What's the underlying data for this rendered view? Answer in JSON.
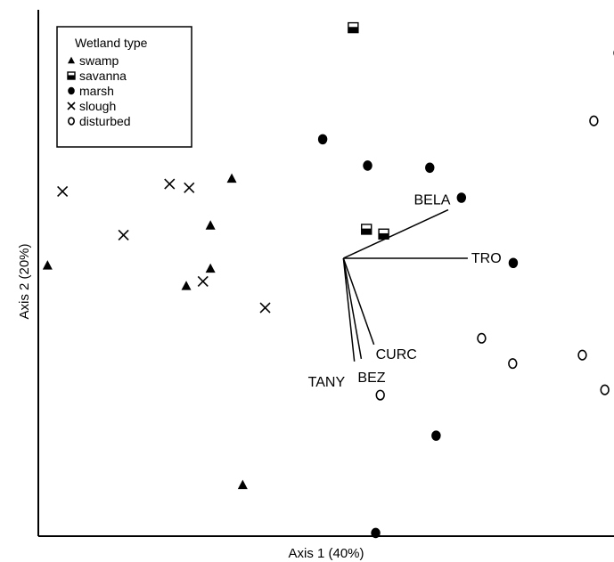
{
  "chart_data": {
    "type": "scatter",
    "xlabel": "Axis 1 (40%)",
    "ylabel": "Axis 2 (20%)",
    "xlim": [
      0,
      100
    ],
    "ylim": [
      0,
      100
    ],
    "grid": false,
    "legend": {
      "title": "Wetland type",
      "placement": "top-left",
      "entries": [
        "swamp",
        "savanna",
        "marsh",
        "slough",
        "disturbed"
      ]
    },
    "series": [
      {
        "name": "swamp",
        "marker": "triangle",
        "points": [
          [
            1.6,
            51.4
          ],
          [
            33.6,
            67.9
          ],
          [
            29.9,
            59.0
          ],
          [
            29.9,
            50.8
          ],
          [
            25.7,
            47.5
          ],
          [
            35.5,
            9.7
          ]
        ]
      },
      {
        "name": "savanna",
        "marker": "half-filled-square",
        "points": [
          [
            54.7,
            96.6
          ],
          [
            57.0,
            58.3
          ],
          [
            60.0,
            57.4
          ]
        ]
      },
      {
        "name": "marsh",
        "marker": "filled-circle",
        "points": [
          [
            49.4,
            75.4
          ],
          [
            57.2,
            70.4
          ],
          [
            68.0,
            70.0
          ],
          [
            73.5,
            64.3
          ],
          [
            82.5,
            51.9
          ],
          [
            69.1,
            19.1
          ],
          [
            58.6,
            0.6
          ]
        ]
      },
      {
        "name": "slough",
        "marker": "x",
        "points": [
          [
            4.2,
            65.5
          ],
          [
            14.8,
            57.2
          ],
          [
            22.8,
            66.9
          ],
          [
            26.2,
            66.2
          ],
          [
            28.6,
            48.4
          ],
          [
            39.4,
            43.4
          ]
        ]
      },
      {
        "name": "disturbed",
        "marker": "open-circle",
        "points": [
          [
            100.7,
            91.8
          ],
          [
            96.5,
            78.9
          ],
          [
            77.0,
            37.6
          ],
          [
            82.4,
            32.8
          ],
          [
            94.5,
            34.4
          ],
          [
            98.4,
            27.8
          ],
          [
            59.4,
            26.8
          ]
        ]
      }
    ],
    "vectors": [
      {
        "label": "BELA",
        "from": [
          53.0,
          52.8
        ],
        "to": [
          71.2,
          62.0
        ]
      },
      {
        "label": "TRO",
        "from": [
          53.0,
          52.8
        ],
        "to": [
          74.6,
          52.8
        ]
      },
      {
        "label": "CURC",
        "from": [
          53.0,
          52.8
        ],
        "to": [
          58.3,
          36.4
        ]
      },
      {
        "label": "BEZ",
        "from": [
          53.0,
          52.8
        ],
        "to": [
          56.1,
          33.7
        ]
      },
      {
        "label": "TANY",
        "from": [
          53.0,
          52.8
        ],
        "to": [
          54.9,
          33.2
        ]
      }
    ]
  }
}
